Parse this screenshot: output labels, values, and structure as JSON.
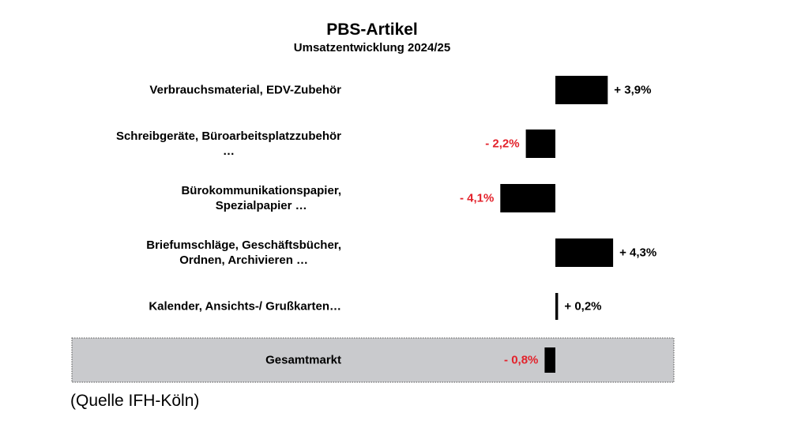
{
  "chart_data": {
    "type": "bar",
    "orientation": "horizontal",
    "title": "PBS-Artikel",
    "subtitle": "Umsatzentwicklung 2024/25",
    "categories": [
      "Verbrauchsmaterial, EDV-Zubehör",
      "Schreibgeräte, Büroarbeitsplatzzubehör\n…",
      "Bürokommunikationspapier,\nSpezialpapier …",
      "Briefumschläge, Geschäftsbücher,\nOrdnen, Archivieren …",
      "Kalender, Ansichts-/ Grußkarten…",
      "Gesamtmarkt"
    ],
    "values": [
      3.9,
      -2.2,
      -4.1,
      4.3,
      0.2,
      -0.8
    ],
    "value_labels": [
      "+ 3,9%",
      "- 2,2%",
      "- 4,1%",
      "+ 4,3%",
      "+ 0,2%",
      "- 0,8%"
    ],
    "color": "#000000",
    "label_colors": {
      "positive": "#000000",
      "negative": "#e3222b"
    },
    "source": "(Quelle IFH-Köln)"
  }
}
